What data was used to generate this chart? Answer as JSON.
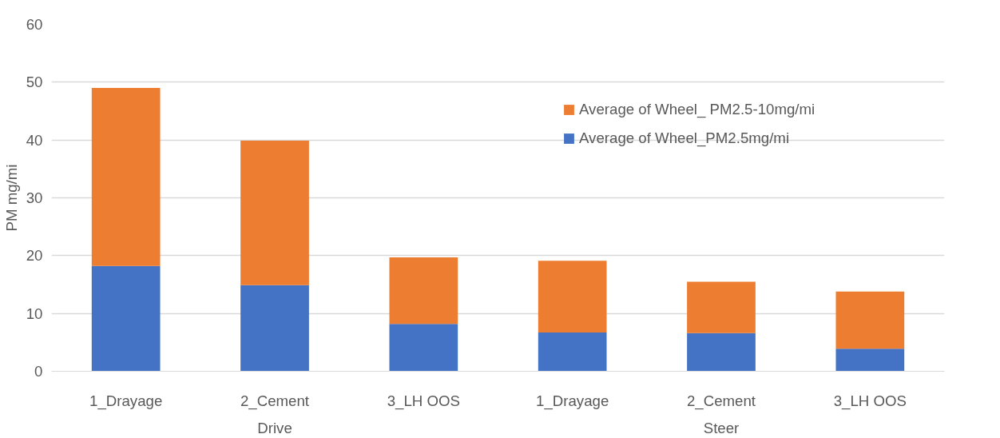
{
  "chart_data": {
    "type": "bar",
    "stacked": true,
    "ylabel": "PM mg/mi",
    "categories": [
      "1_Drayage",
      "2_Cement",
      "3_LH OOS",
      "1_Drayage",
      "2_Cement",
      "3_LH OOS"
    ],
    "series": [
      {
        "name": "Average of Wheel_PM2.5mg/mi",
        "color": "#4472c4",
        "values": [
          18.2,
          14.9,
          8.2,
          6.7,
          6.6,
          3.9
        ]
      },
      {
        "name": "Average of Wheel_ PM2.5-10mg/mi",
        "color": "#ed7d31",
        "values": [
          30.8,
          25.0,
          11.5,
          12.4,
          8.9,
          9.9
        ]
      }
    ],
    "annotations": [
      "Drive",
      "Steer"
    ],
    "ylim": [
      0,
      60
    ],
    "yticks": [
      0,
      10,
      20,
      30,
      40,
      50,
      60
    ],
    "grid": "y",
    "legend": "top right"
  }
}
